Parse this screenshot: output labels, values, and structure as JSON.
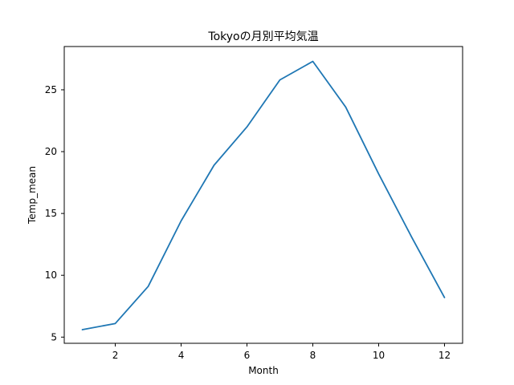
{
  "chart_data": {
    "type": "line",
    "title": "Tokyoの月別平均気温",
    "xlabel": "Month",
    "ylabel": "Temp_mean",
    "xlim": [
      0.45,
      12.55
    ],
    "ylim": [
      4.5,
      28.5
    ],
    "x_ticks": [
      2,
      4,
      6,
      8,
      10,
      12
    ],
    "y_ticks": [
      5,
      10,
      15,
      20,
      25
    ],
    "grid": false,
    "legend": "none",
    "line_color": "#1f77b4",
    "series": [
      {
        "x": [
          1,
          2,
          3,
          4,
          5,
          6,
          7,
          8,
          9,
          10,
          11,
          12
        ],
        "values": [
          5.6,
          6.1,
          9.1,
          14.4,
          18.9,
          22.0,
          25.8,
          27.3,
          23.6,
          18.2,
          13.1,
          8.2
        ]
      }
    ]
  }
}
